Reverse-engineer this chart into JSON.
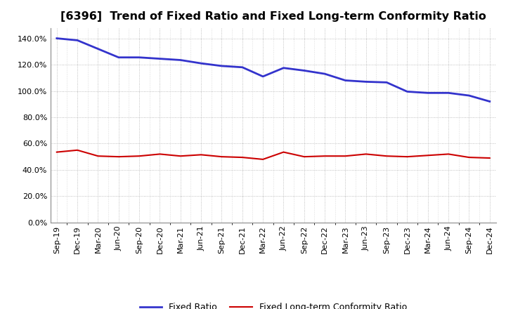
{
  "title": "[6396]  Trend of Fixed Ratio and Fixed Long-term Conformity Ratio",
  "x_labels": [
    "Sep-19",
    "Dec-19",
    "Mar-20",
    "Jun-20",
    "Sep-20",
    "Dec-20",
    "Mar-21",
    "Jun-21",
    "Sep-21",
    "Dec-21",
    "Mar-22",
    "Jun-22",
    "Sep-22",
    "Dec-22",
    "Mar-23",
    "Jun-23",
    "Sep-23",
    "Dec-23",
    "Mar-24",
    "Jun-24",
    "Sep-24",
    "Dec-24"
  ],
  "fixed_ratio": [
    140.0,
    138.5,
    132.0,
    125.5,
    125.5,
    124.5,
    123.5,
    121.0,
    119.0,
    118.0,
    111.0,
    117.5,
    115.5,
    113.0,
    108.0,
    107.0,
    106.5,
    99.5,
    98.5,
    98.5,
    96.5,
    92.0
  ],
  "fixed_lt_ratio": [
    53.5,
    55.0,
    50.5,
    50.0,
    50.5,
    52.0,
    50.5,
    51.5,
    50.0,
    49.5,
    48.0,
    53.5,
    50.0,
    50.5,
    50.5,
    52.0,
    50.5,
    50.0,
    51.0,
    52.0,
    49.5,
    49.0
  ],
  "blue_color": "#3333cc",
  "red_color": "#cc0000",
  "background_color": "#ffffff",
  "plot_bg_color": "#f5f5f5",
  "grid_color": "#999999",
  "ylim_min": 0,
  "ylim_max": 148,
  "yticks": [
    0,
    20,
    40,
    60,
    80,
    100,
    120,
    140
  ],
  "legend_fixed_ratio": "Fixed Ratio",
  "legend_fixed_lt_ratio": "Fixed Long-term Conformity Ratio",
  "title_fontsize": 11.5,
  "tick_fontsize": 8,
  "legend_fontsize": 9
}
